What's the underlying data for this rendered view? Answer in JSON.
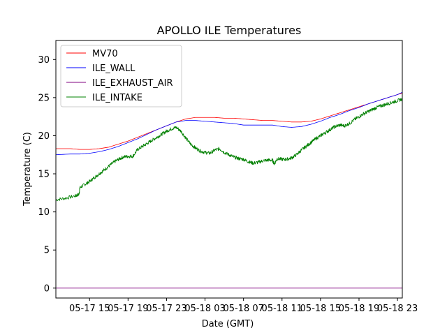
{
  "chart_data": {
    "type": "line",
    "title": "APOLLO ILE Temperatures",
    "xlabel": "Date (GMT)",
    "ylabel": "Temperature (C)",
    "xlim": [
      11.5,
      47.5
    ],
    "ylim": [
      -1.3,
      32.5
    ],
    "grid": false,
    "legend_position": "top-left",
    "x_units": "hours since 05-17 00:00 GMT",
    "x_ticks": [
      {
        "value": 15,
        "label": "05-17 15"
      },
      {
        "value": 19,
        "label": "05-17 19"
      },
      {
        "value": 23,
        "label": "05-17 23"
      },
      {
        "value": 27,
        "label": "05-18 03"
      },
      {
        "value": 31,
        "label": "05-18 07"
      },
      {
        "value": 35,
        "label": "05-18 11"
      },
      {
        "value": 39,
        "label": "05-18 15"
      },
      {
        "value": 43,
        "label": "05-18 19"
      },
      {
        "value": 47,
        "label": "05-18 23"
      }
    ],
    "y_ticks": [
      {
        "value": 0,
        "label": "0"
      },
      {
        "value": 5,
        "label": "5"
      },
      {
        "value": 10,
        "label": "10"
      },
      {
        "value": 15,
        "label": "15"
      },
      {
        "value": 20,
        "label": "20"
      },
      {
        "value": 25,
        "label": "25"
      },
      {
        "value": 30,
        "label": "30"
      }
    ],
    "series": [
      {
        "name": "MV70",
        "color": "#ff0000",
        "x": [
          11.5,
          13,
          14,
          15,
          16,
          17,
          18,
          19,
          20,
          21,
          22,
          23,
          24,
          25,
          26,
          27,
          28,
          29,
          30,
          31,
          32,
          33,
          34,
          35,
          36,
          37,
          38,
          39,
          40,
          41,
          42,
          43,
          44,
          45,
          46,
          47,
          47.5
        ],
        "y": [
          18.3,
          18.3,
          18.2,
          18.2,
          18.3,
          18.5,
          18.9,
          19.3,
          19.8,
          20.3,
          20.8,
          21.3,
          21.8,
          22.2,
          22.4,
          22.4,
          22.4,
          22.3,
          22.3,
          22.2,
          22.1,
          22.0,
          22.0,
          21.9,
          21.8,
          21.8,
          21.9,
          22.2,
          22.6,
          23.0,
          23.4,
          23.8,
          24.2,
          24.6,
          25.0,
          25.4,
          25.6
        ]
      },
      {
        "name": "ILE_WALL",
        "color": "#0000ff",
        "x": [
          11.5,
          13,
          14,
          15,
          16,
          17,
          18,
          19,
          20,
          21,
          22,
          23,
          24,
          25,
          26,
          27,
          28,
          29,
          30,
          31,
          32,
          33,
          34,
          35,
          36,
          37,
          38,
          39,
          40,
          41,
          42,
          43,
          44,
          45,
          46,
          47,
          47.5
        ],
        "y": [
          17.5,
          17.6,
          17.6,
          17.7,
          17.9,
          18.2,
          18.6,
          19.1,
          19.6,
          20.2,
          20.8,
          21.3,
          21.8,
          22.0,
          22.0,
          21.9,
          21.8,
          21.7,
          21.6,
          21.4,
          21.4,
          21.4,
          21.4,
          21.2,
          21.1,
          21.2,
          21.5,
          21.9,
          22.4,
          22.8,
          23.3,
          23.7,
          24.2,
          24.6,
          25.0,
          25.4,
          25.7
        ]
      },
      {
        "name": "ILE_EXHAUST_AIR",
        "color": "#800080",
        "x": [
          11.5,
          47.5
        ],
        "y": [
          0.0,
          0.0
        ]
      },
      {
        "name": "ILE_INTAKE",
        "color": "#008000",
        "x": [
          11.5,
          12.5,
          13.5,
          13.9,
          14.0,
          14.5,
          15,
          15.5,
          16,
          16.5,
          17,
          17.5,
          18,
          18.5,
          19,
          19.5,
          20,
          20.5,
          21,
          21.5,
          22,
          22.5,
          23,
          23.5,
          24,
          24.5,
          25,
          25.5,
          26,
          26.5,
          27,
          27.5,
          28,
          28.5,
          29,
          29.5,
          30,
          30.5,
          31,
          31.5,
          32,
          32.5,
          33,
          33.5,
          34,
          34.2,
          34.5,
          35,
          35.5,
          36,
          36.5,
          37,
          37.5,
          38,
          38.5,
          39,
          39.5,
          40,
          40.5,
          41,
          41.5,
          42,
          42.5,
          43,
          43.5,
          44,
          44.5,
          45,
          45.5,
          46,
          46.5,
          47,
          47.5
        ],
        "y": [
          11.6,
          11.8,
          12.1,
          12.3,
          13.2,
          13.6,
          14.0,
          14.5,
          15.0,
          15.5,
          16.0,
          16.5,
          16.9,
          17.2,
          17.3,
          17.3,
          18.2,
          18.6,
          19.0,
          19.4,
          19.8,
          20.2,
          20.6,
          20.9,
          21.1,
          20.6,
          19.7,
          18.9,
          18.4,
          18.0,
          17.8,
          17.7,
          18.1,
          18.3,
          17.8,
          17.5,
          17.2,
          17.0,
          16.9,
          16.6,
          16.4,
          16.5,
          16.7,
          16.8,
          16.8,
          16.3,
          17.0,
          16.9,
          16.9,
          17.1,
          17.5,
          18.1,
          18.6,
          19.1,
          19.6,
          20.0,
          20.4,
          20.8,
          21.2,
          21.4,
          21.3,
          21.6,
          22.1,
          22.5,
          22.9,
          23.2,
          23.5,
          23.8,
          24.0,
          24.2,
          24.4,
          24.6,
          24.8
        ]
      }
    ]
  }
}
